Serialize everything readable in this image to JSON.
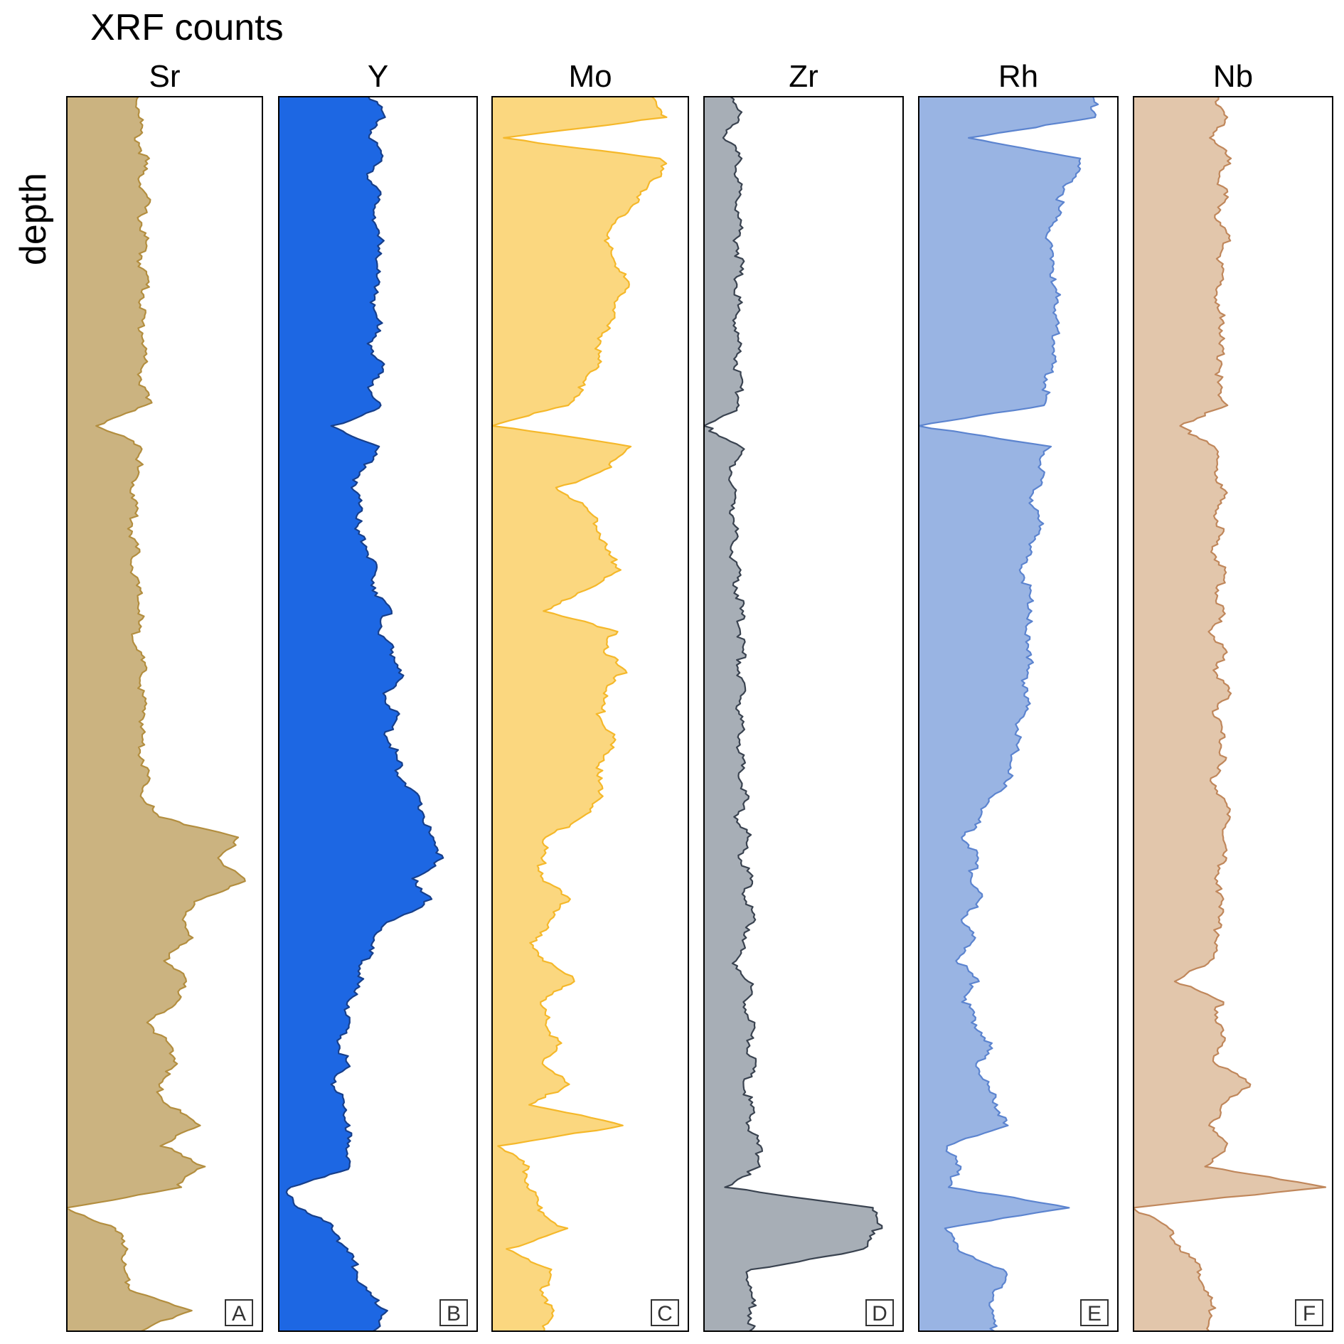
{
  "chart_data": {
    "type": "area",
    "title": "XRF counts",
    "ylabel": "depth",
    "xlabel": "",
    "grid": false,
    "legend": "none",
    "orientation": "vertical-depth",
    "depth_samples": 60,
    "depth_range": [
      0,
      1
    ],
    "x_range": [
      0,
      1
    ],
    "panels": [
      {
        "id": "sr",
        "element": "Sr",
        "letter": "A",
        "fill": "#cbb380",
        "stroke": "#b38e3f",
        "values": [
          0.38,
          0.4,
          0.38,
          0.42,
          0.4,
          0.43,
          0.4,
          0.42,
          0.4,
          0.43,
          0.41,
          0.4,
          0.42,
          0.41,
          0.4,
          0.44,
          0.15,
          0.42,
          0.38,
          0.36,
          0.37,
          0.35,
          0.37,
          0.36,
          0.38,
          0.4,
          0.37,
          0.39,
          0.41,
          0.4,
          0.42,
          0.4,
          0.41,
          0.43,
          0.42,
          0.48,
          0.94,
          0.8,
          0.97,
          0.72,
          0.62,
          0.66,
          0.52,
          0.66,
          0.58,
          0.45,
          0.53,
          0.6,
          0.48,
          0.55,
          0.7,
          0.52,
          0.72,
          0.6,
          0.0,
          0.25,
          0.33,
          0.3,
          0.36,
          0.65,
          0.4
        ]
      },
      {
        "id": "y",
        "element": "Y",
        "letter": "B",
        "fill": "#1d67e3",
        "stroke": "#173f8a",
        "values": [
          0.5,
          0.55,
          0.48,
          0.56,
          0.47,
          0.55,
          0.48,
          0.56,
          0.5,
          0.54,
          0.48,
          0.55,
          0.47,
          0.56,
          0.48,
          0.55,
          0.3,
          0.52,
          0.47,
          0.38,
          0.45,
          0.4,
          0.48,
          0.5,
          0.52,
          0.58,
          0.54,
          0.6,
          0.66,
          0.56,
          0.62,
          0.58,
          0.62,
          0.65,
          0.72,
          0.78,
          0.8,
          0.88,
          0.7,
          0.82,
          0.6,
          0.5,
          0.46,
          0.42,
          0.38,
          0.36,
          0.32,
          0.36,
          0.3,
          0.34,
          0.38,
          0.35,
          0.4,
          0.05,
          0.1,
          0.3,
          0.35,
          0.42,
          0.45,
          0.58,
          0.5
        ]
      },
      {
        "id": "mo",
        "element": "Mo",
        "letter": "C",
        "fill": "#fbd77f",
        "stroke": "#f5b82a",
        "values": [
          0.85,
          0.94,
          0.05,
          0.92,
          0.88,
          0.78,
          0.68,
          0.6,
          0.66,
          0.72,
          0.68,
          0.62,
          0.58,
          0.56,
          0.5,
          0.4,
          0.0,
          0.75,
          0.62,
          0.36,
          0.5,
          0.58,
          0.6,
          0.7,
          0.48,
          0.3,
          0.65,
          0.62,
          0.7,
          0.6,
          0.58,
          0.65,
          0.62,
          0.56,
          0.6,
          0.48,
          0.3,
          0.26,
          0.28,
          0.4,
          0.32,
          0.22,
          0.28,
          0.45,
          0.25,
          0.3,
          0.35,
          0.28,
          0.4,
          0.22,
          0.7,
          0.05,
          0.18,
          0.2,
          0.25,
          0.38,
          0.1,
          0.3,
          0.28,
          0.32,
          0.28
        ]
      },
      {
        "id": "zr",
        "element": "Zr",
        "letter": "D",
        "fill": "#a7aeb6",
        "stroke": "#3a4350",
        "values": [
          0.16,
          0.18,
          0.12,
          0.18,
          0.18,
          0.18,
          0.19,
          0.18,
          0.19,
          0.18,
          0.18,
          0.17,
          0.18,
          0.18,
          0.18,
          0.2,
          0.0,
          0.2,
          0.15,
          0.15,
          0.16,
          0.16,
          0.15,
          0.17,
          0.18,
          0.19,
          0.2,
          0.2,
          0.19,
          0.2,
          0.19,
          0.2,
          0.19,
          0.2,
          0.22,
          0.18,
          0.23,
          0.2,
          0.24,
          0.22,
          0.26,
          0.22,
          0.16,
          0.25,
          0.22,
          0.26,
          0.24,
          0.26,
          0.22,
          0.24,
          0.25,
          0.28,
          0.3,
          0.1,
          0.9,
          0.92,
          0.86,
          0.25,
          0.24,
          0.26,
          0.24
        ]
      },
      {
        "id": "rh",
        "element": "Rh",
        "letter": "E",
        "fill": "#99b4e3",
        "stroke": "#5c84cf",
        "values": [
          0.92,
          0.94,
          0.25,
          0.86,
          0.8,
          0.75,
          0.72,
          0.68,
          0.72,
          0.7,
          0.74,
          0.72,
          0.73,
          0.7,
          0.68,
          0.66,
          0.0,
          0.68,
          0.65,
          0.62,
          0.6,
          0.66,
          0.58,
          0.55,
          0.58,
          0.6,
          0.55,
          0.6,
          0.56,
          0.58,
          0.55,
          0.52,
          0.5,
          0.48,
          0.4,
          0.32,
          0.25,
          0.3,
          0.28,
          0.32,
          0.25,
          0.28,
          0.22,
          0.3,
          0.25,
          0.3,
          0.38,
          0.32,
          0.35,
          0.42,
          0.45,
          0.15,
          0.2,
          0.18,
          0.78,
          0.15,
          0.2,
          0.45,
          0.42,
          0.38,
          0.4
        ]
      },
      {
        "id": "nb",
        "element": "Nb",
        "letter": "F",
        "fill": "#e2c6ab",
        "stroke": "#c0875b",
        "values": [
          0.45,
          0.48,
          0.42,
          0.5,
          0.46,
          0.48,
          0.44,
          0.5,
          0.45,
          0.47,
          0.43,
          0.48,
          0.45,
          0.47,
          0.44,
          0.5,
          0.23,
          0.45,
          0.42,
          0.48,
          0.44,
          0.46,
          0.42,
          0.48,
          0.45,
          0.47,
          0.42,
          0.48,
          0.44,
          0.5,
          0.43,
          0.46,
          0.48,
          0.42,
          0.46,
          0.52,
          0.46,
          0.5,
          0.42,
          0.48,
          0.44,
          0.46,
          0.4,
          0.24,
          0.46,
          0.44,
          0.48,
          0.42,
          0.64,
          0.46,
          0.42,
          0.48,
          0.4,
          1.0,
          0.0,
          0.18,
          0.26,
          0.35,
          0.38,
          0.42,
          0.4
        ]
      }
    ]
  }
}
